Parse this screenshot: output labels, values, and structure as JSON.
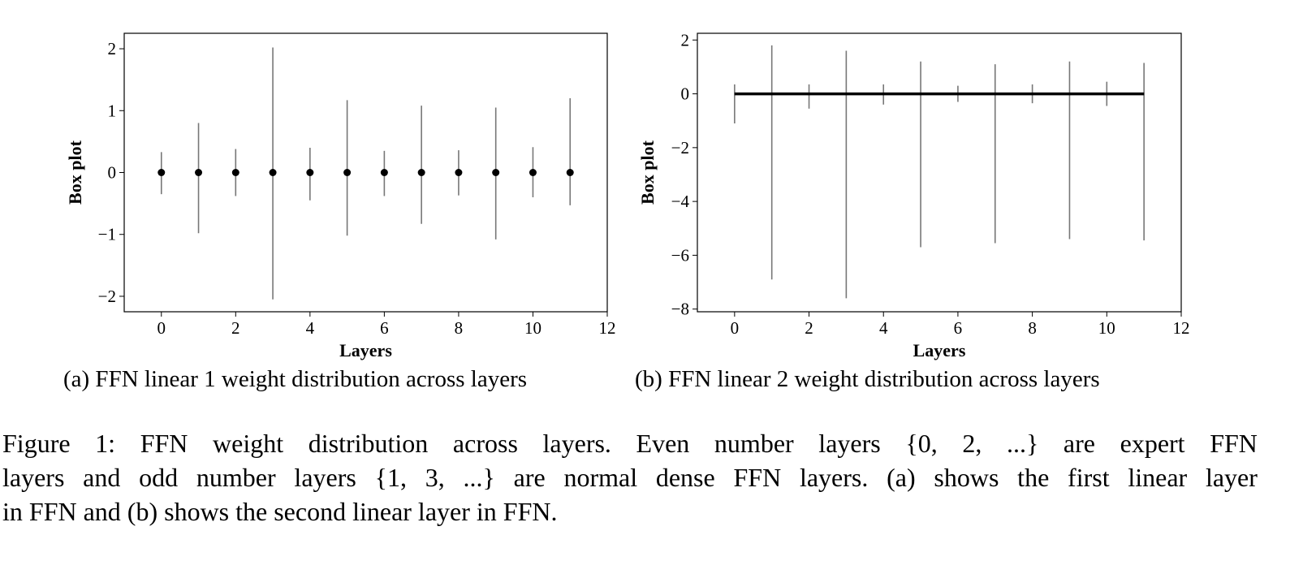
{
  "chart_data": [
    {
      "type": "box",
      "xlabel": "Layers",
      "ylabel": "Box plot",
      "xlim": [
        -1,
        12
      ],
      "ylim": [
        -2.25,
        2.25
      ],
      "xticks": [
        0,
        2,
        4,
        6,
        8,
        10,
        12
      ],
      "yticks": [
        -2,
        -1,
        0,
        1,
        2
      ],
      "grid": false,
      "x": [
        0,
        1,
        2,
        3,
        4,
        5,
        6,
        7,
        8,
        9,
        10,
        11
      ],
      "whisker_low": [
        -0.35,
        -0.98,
        -0.38,
        -2.05,
        -0.45,
        -1.02,
        -0.38,
        -0.83,
        -0.37,
        -1.08,
        -0.4,
        -0.53
      ],
      "whisker_high": [
        0.33,
        0.8,
        0.38,
        2.02,
        0.4,
        1.17,
        0.35,
        1.08,
        0.36,
        1.05,
        0.41,
        1.2
      ],
      "median": [
        0,
        0,
        0,
        0,
        0,
        0,
        0,
        0,
        0,
        0,
        0,
        0
      ],
      "median_style": "dot",
      "subcaption": "(a) FFN linear 1 weight distribution across layers"
    },
    {
      "type": "box",
      "xlabel": "Layers",
      "ylabel": "Box plot",
      "xlim": [
        -1,
        12
      ],
      "ylim": [
        -8.1,
        2.25
      ],
      "xticks": [
        0,
        2,
        4,
        6,
        8,
        10,
        12
      ],
      "yticks": [
        -8,
        -6,
        -4,
        -2,
        0,
        2
      ],
      "grid": false,
      "x": [
        0,
        1,
        2,
        3,
        4,
        5,
        6,
        7,
        8,
        9,
        10,
        11
      ],
      "whisker_low": [
        -1.1,
        -6.9,
        -0.55,
        -7.6,
        -0.4,
        -5.7,
        -0.3,
        -5.55,
        -0.35,
        -5.4,
        -0.45,
        -5.45
      ],
      "whisker_high": [
        0.35,
        1.8,
        0.35,
        1.6,
        0.35,
        1.2,
        0.3,
        1.1,
        0.35,
        1.2,
        0.45,
        1.15
      ],
      "median": [
        0,
        0,
        0,
        0,
        0,
        0,
        0,
        0,
        0,
        0,
        0,
        0
      ],
      "median_style": "line",
      "subcaption": "(b) FFN linear 2 weight distribution across layers"
    }
  ],
  "caption": {
    "lines": [
      "Figure 1: FFN weight distribution across layers. Even number layers {0, 2, ...} are expert FFN",
      "layers and odd number layers {1, 3, ...} are normal dense FFN layers. (a) shows the first linear layer",
      "in FFN and (b) shows the second linear layer in FFN."
    ]
  }
}
